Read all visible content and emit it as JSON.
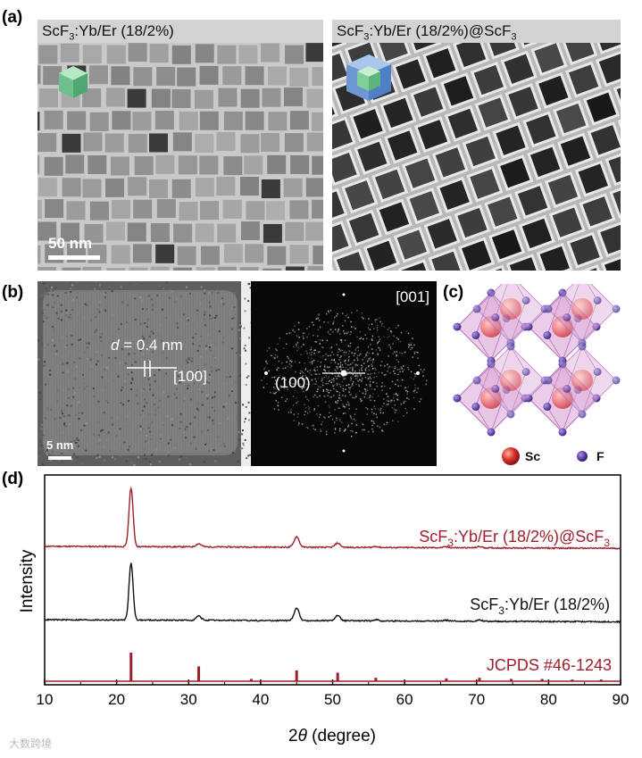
{
  "panels": {
    "a": {
      "letter": "(a)",
      "left_header_base": "ScF",
      "left_header_sub": "3",
      "left_header_rest": ":Yb/Er (18/2%)",
      "right_header_base": "ScF",
      "right_header_sub": "3",
      "right_header_mid": ":Yb/Er (18/2%)@ScF",
      "right_header_sub2": "3",
      "scalebar_label": "50 nm"
    },
    "b": {
      "letter": "(b)",
      "d_var": "d",
      "d_rest": " = 0.4 nm",
      "direction_label": "[100]",
      "zone_axis": "[001]",
      "fft_spot_label": "(100)",
      "scalebar_label": "5 nm"
    },
    "c": {
      "letter": "(c)",
      "legend_sc": "Sc",
      "legend_f": "F"
    },
    "d": {
      "letter": "(d)"
    }
  },
  "colors": {
    "core_shell_series": "#a01d2a",
    "core_series": "#111111",
    "reference": "#a01d2a",
    "octahedron": "#d9a4d6",
    "sc_atom": "#d9342b",
    "f_atom": "#5b3aa5",
    "header_bg": "#d3d3d3"
  },
  "icons": {
    "a_left_inset": "green-cube-icon",
    "a_right_inset": "core-shell-cube-icon"
  },
  "watermark": "大数跨境",
  "chart_data": {
    "type": "line",
    "xlabel_prefix": "2",
    "xlabel_theta": "θ",
    "xlabel_suffix": " (degree)",
    "ylabel": "Intensity",
    "xlim": [
      10,
      90
    ],
    "xticks": [
      10,
      20,
      30,
      40,
      50,
      60,
      70,
      80,
      90
    ],
    "yticks_shown": false,
    "grid": false,
    "series": [
      {
        "name_base": "ScF",
        "name_sub": "3",
        "name_mid": ":Yb/Er (18/2%)@ScF",
        "name_sub2": "3",
        "baseline": 0.66,
        "peaks": [
          {
            "x": 22.0,
            "height": 0.28
          },
          {
            "x": 31.4,
            "height": 0.015
          },
          {
            "x": 45.0,
            "height": 0.05
          },
          {
            "x": 50.7,
            "height": 0.02
          },
          {
            "x": 56.0,
            "height": 0.005
          },
          {
            "x": 65.8,
            "height": 0.004
          },
          {
            "x": 70.4,
            "height": 0.006
          }
        ]
      },
      {
        "name_base": "ScF",
        "name_sub": "3",
        "name_mid": ":Yb/Er (18/2%)",
        "baseline": 0.31,
        "peaks": [
          {
            "x": 22.0,
            "height": 0.27
          },
          {
            "x": 31.4,
            "height": 0.02
          },
          {
            "x": 45.0,
            "height": 0.06
          },
          {
            "x": 50.7,
            "height": 0.025
          },
          {
            "x": 56.0,
            "height": 0.006
          },
          {
            "x": 65.8,
            "height": 0.005
          },
          {
            "x": 70.4,
            "height": 0.006
          }
        ]
      }
    ],
    "reference": {
      "name": "JCPDS #46-1243",
      "lines": [
        {
          "x": 22.0,
          "intensity": 1.0
        },
        {
          "x": 31.4,
          "intensity": 0.52
        },
        {
          "x": 38.7,
          "intensity": 0.08
        },
        {
          "x": 45.0,
          "intensity": 0.38
        },
        {
          "x": 50.7,
          "intensity": 0.3
        },
        {
          "x": 56.0,
          "intensity": 0.12
        },
        {
          "x": 65.8,
          "intensity": 0.1
        },
        {
          "x": 70.4,
          "intensity": 0.12
        },
        {
          "x": 74.8,
          "intensity": 0.08
        },
        {
          "x": 79.1,
          "intensity": 0.08
        },
        {
          "x": 83.3,
          "intensity": 0.06
        },
        {
          "x": 87.3,
          "intensity": 0.06
        }
      ]
    }
  }
}
